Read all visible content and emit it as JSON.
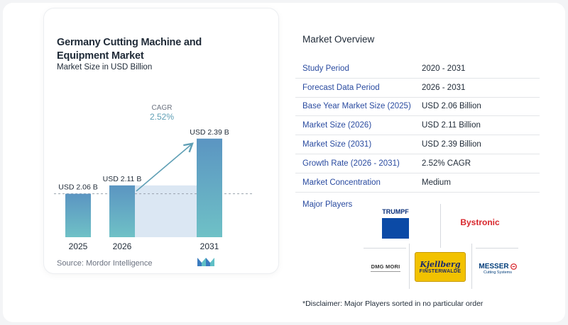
{
  "chart_data": {
    "type": "bar",
    "title": "Germany Cutting Machine and Equipment Market",
    "subtitle": "Market Size in USD Billion",
    "categories": [
      "2025",
      "2026",
      "2031"
    ],
    "values": [
      2.06,
      2.11,
      2.39
    ],
    "value_labels": [
      "USD 2.06 B",
      "USD 2.11 B",
      "USD 2.39 B"
    ],
    "cagr_label": "CAGR",
    "cagr_value": "2.52%",
    "grid": false,
    "colors": {
      "bar_top": "#5b95c2",
      "bar_bottom": "#6fc1c6",
      "accent": "#5f9fb5",
      "band": "#dbe7f3"
    }
  },
  "source": "Source:  Mordor Intelligence",
  "overview": {
    "title": "Market Overview",
    "rows": [
      {
        "label": "Study Period",
        "value": "2020 - 2031"
      },
      {
        "label": "Forecast Data Period",
        "value": "2026 - 2031"
      },
      {
        "label": "Base Year Market Size (2025)",
        "value": "USD 2.06 Billion"
      },
      {
        "label": "Market Size (2026)",
        "value": "USD 2.11 Billion"
      },
      {
        "label": "Market Size (2031)",
        "value": "USD 2.39 Billion"
      },
      {
        "label": "Growth Rate (2026 - 2031)",
        "value": "2.52% CAGR"
      },
      {
        "label": "Market Concentration",
        "value": "Medium"
      }
    ]
  },
  "players": {
    "title": "Major Players",
    "logos": {
      "trumpf": "TRUMPF",
      "bystronic": "Bystronic",
      "dmgmori": "DMG MORI",
      "kjellberg_1": "Kjellberg",
      "kjellberg_2": "FINSTERWALDE",
      "messer_1": "MESSER",
      "messer_2": "Cutting Systems"
    }
  },
  "disclaimer": "*Disclaimer: Major Players sorted in no particular order"
}
